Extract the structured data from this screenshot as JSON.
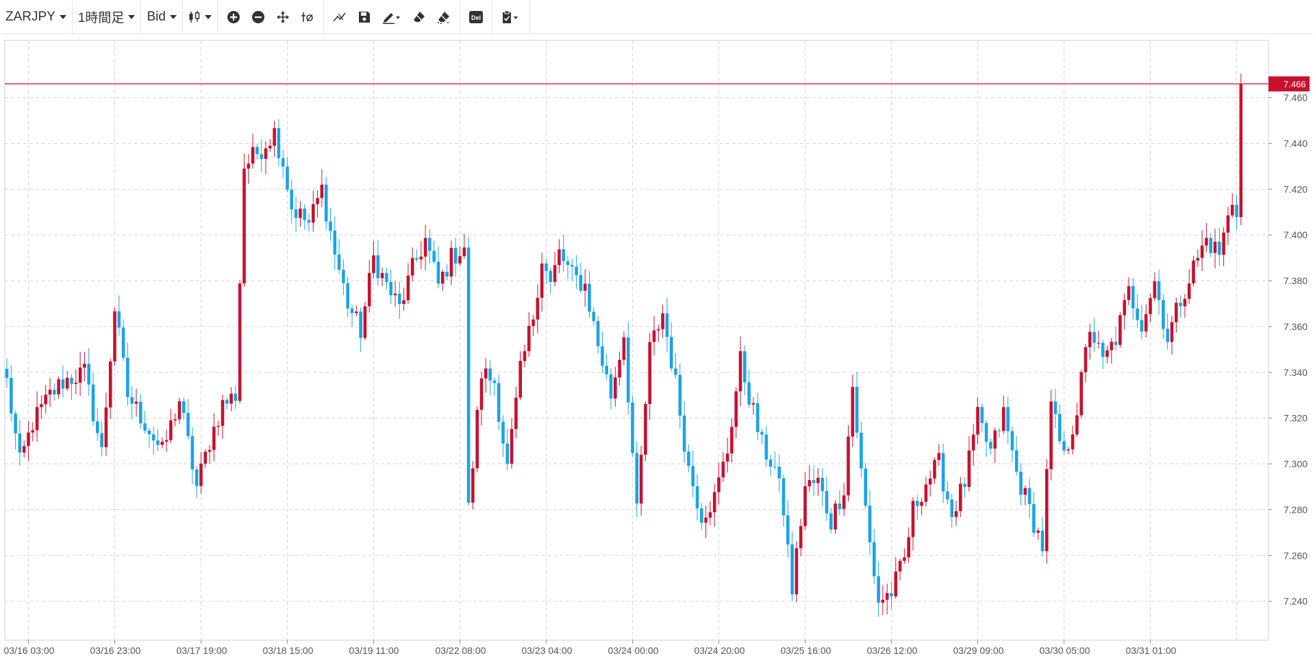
{
  "toolbar": {
    "symbol": "ZARJPY",
    "timeframe": "1時間足",
    "price_type": "Bid",
    "del_label": "Del",
    "icons": [
      "candlestick-type-icon",
      "zoom-in-icon",
      "zoom-out-icon",
      "pan-move-icon",
      "crosshair-reset-icon",
      "trendline-icon",
      "save-icon",
      "draw-tool-icon",
      "eraser-icon",
      "eraser-all-icon",
      "delete-icon",
      "clipboard-icon"
    ]
  },
  "chart_data": {
    "type": "candlestick",
    "symbol": "ZARJPY",
    "timeframe": "1時間足",
    "ylim": [
      7.223,
      7.485
    ],
    "y_ticks": [
      "7.460",
      "7.440",
      "7.420",
      "7.400",
      "7.380",
      "7.360",
      "7.340",
      "7.320",
      "7.300",
      "7.280",
      "7.260",
      "7.240"
    ],
    "x_ticks": [
      "03/16 03:00",
      "03/16 23:00",
      "03/17 19:00",
      "03/18 15:00",
      "03/19 11:00",
      "03/22 08:00",
      "03/23 04:00",
      "03/24 00:00",
      "03/24 20:00",
      "03/25 16:00",
      "03/26 12:00",
      "03/29 09:00",
      "03/30 05:00",
      "03/31 01:00"
    ],
    "x_tick_index": [
      5,
      25,
      45,
      65,
      85,
      105,
      125,
      145,
      165,
      185,
      205,
      225,
      245,
      265
    ],
    "candle_count": 287,
    "last_price": "7.466",
    "last_value": 7.466,
    "colors": {
      "up": "#c8102e",
      "down": "#1aa3e8",
      "grid": "#d5d5d5",
      "last_line": "#c8102e"
    },
    "anchors": [
      [
        0,
        7.336
      ],
      [
        3,
        7.3
      ],
      [
        6,
        7.318
      ],
      [
        10,
        7.33
      ],
      [
        13,
        7.336
      ],
      [
        18,
        7.34
      ],
      [
        22,
        7.305
      ],
      [
        25,
        7.368
      ],
      [
        28,
        7.33
      ],
      [
        32,
        7.318
      ],
      [
        36,
        7.305
      ],
      [
        40,
        7.328
      ],
      [
        44,
        7.29
      ],
      [
        47,
        7.31
      ],
      [
        50,
        7.326
      ],
      [
        53,
        7.33
      ],
      [
        55,
        7.43
      ],
      [
        59,
        7.438
      ],
      [
        62,
        7.445
      ],
      [
        64,
        7.432
      ],
      [
        66,
        7.412
      ],
      [
        70,
        7.405
      ],
      [
        73,
        7.42
      ],
      [
        76,
        7.392
      ],
      [
        79,
        7.37
      ],
      [
        82,
        7.358
      ],
      [
        85,
        7.39
      ],
      [
        88,
        7.378
      ],
      [
        91,
        7.368
      ],
      [
        94,
        7.385
      ],
      [
        97,
        7.398
      ],
      [
        100,
        7.378
      ],
      [
        103,
        7.39
      ],
      [
        106,
        7.395
      ],
      [
        107,
        7.28
      ],
      [
        110,
        7.34
      ],
      [
        113,
        7.336
      ],
      [
        116,
        7.298
      ],
      [
        119,
        7.34
      ],
      [
        122,
        7.365
      ],
      [
        124,
        7.39
      ],
      [
        126,
        7.378
      ],
      [
        128,
        7.392
      ],
      [
        131,
        7.382
      ],
      [
        134,
        7.378
      ],
      [
        137,
        7.352
      ],
      [
        140,
        7.33
      ],
      [
        143,
        7.357
      ],
      [
        146,
        7.278
      ],
      [
        149,
        7.35
      ],
      [
        152,
        7.366
      ],
      [
        155,
        7.335
      ],
      [
        158,
        7.298
      ],
      [
        161,
        7.278
      ],
      [
        164,
        7.285
      ],
      [
        167,
        7.306
      ],
      [
        170,
        7.345
      ],
      [
        172,
        7.33
      ],
      [
        175,
        7.308
      ],
      [
        178,
        7.298
      ],
      [
        180,
        7.28
      ],
      [
        182,
        7.245
      ],
      [
        185,
        7.29
      ],
      [
        188,
        7.292
      ],
      [
        191,
        7.275
      ],
      [
        194,
        7.29
      ],
      [
        196,
        7.334
      ],
      [
        198,
        7.296
      ],
      [
        200,
        7.265
      ],
      [
        202,
        7.24
      ],
      [
        205,
        7.244
      ],
      [
        208,
        7.258
      ],
      [
        210,
        7.28
      ],
      [
        213,
        7.292
      ],
      [
        216,
        7.3
      ],
      [
        219,
        7.278
      ],
      [
        222,
        7.292
      ],
      [
        225,
        7.32
      ],
      [
        228,
        7.305
      ],
      [
        231,
        7.322
      ],
      [
        234,
        7.296
      ],
      [
        237,
        7.28
      ],
      [
        240,
        7.264
      ],
      [
        242,
        7.325
      ],
      [
        245,
        7.302
      ],
      [
        248,
        7.324
      ],
      [
        251,
        7.36
      ],
      [
        254,
        7.344
      ],
      [
        257,
        7.355
      ],
      [
        260,
        7.375
      ],
      [
        263,
        7.362
      ],
      [
        266,
        7.38
      ],
      [
        269,
        7.355
      ],
      [
        272,
        7.372
      ],
      [
        275,
        7.386
      ],
      [
        278,
        7.398
      ],
      [
        281,
        7.392
      ],
      [
        284,
        7.415
      ],
      [
        287,
        7.405
      ],
      [
        288,
        7.444
      ],
      [
        290,
        7.46
      ],
      [
        292,
        7.466
      ]
    ]
  }
}
